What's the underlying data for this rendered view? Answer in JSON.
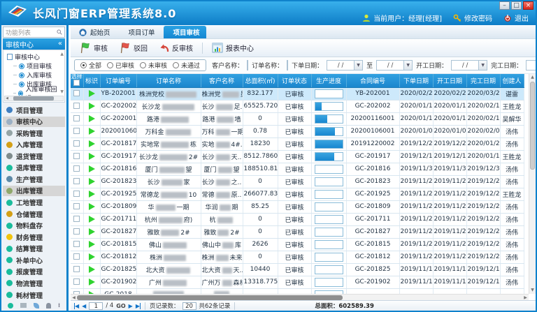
{
  "window": {
    "title": "长风门窗ERP管理系统8.0",
    "controls": {
      "minimize": "–",
      "maximize": "□",
      "close": "×"
    }
  },
  "topbar": {
    "current_user": "当前用户：经理[经理]",
    "change_password": "修改密码",
    "logout": "退出"
  },
  "icons": {
    "collapse": "«",
    "dropdown": "▼",
    "up": "▲",
    "down": "▼",
    "left": "◀",
    "right": "▶",
    "more": "⁞"
  },
  "sidebar": {
    "search_placeholder": "功能列表",
    "panel_title": "审核中心",
    "tree_root": "审核中心",
    "tree_items": [
      "项目审核",
      "入库审核",
      "出库审核",
      "入库审核回退"
    ],
    "menu_items": [
      {
        "label": "项目管理",
        "color": "#3f7fc1",
        "selected": false
      },
      {
        "label": "审核中心",
        "color": "#9bb0c4",
        "selected": true
      },
      {
        "label": "采购管理",
        "color": "#95a5a6",
        "selected": false
      },
      {
        "label": "入库管理",
        "color": "#d4a017",
        "selected": false
      },
      {
        "label": "退货管理",
        "color": "#7f8c8d",
        "selected": false
      },
      {
        "label": "退库管理",
        "color": "#1abc9c",
        "selected": false
      },
      {
        "label": "生产管理",
        "color": "#5d8aa8",
        "selected": false
      },
      {
        "label": "出库管理",
        "color": "#8fa86b",
        "selected": true
      },
      {
        "label": "工地管理",
        "color": "#1abc9c",
        "selected": false
      },
      {
        "label": "仓储管理",
        "color": "#d4a017",
        "selected": false
      },
      {
        "label": "物料盘存",
        "color": "#1abc9c",
        "selected": false
      },
      {
        "label": "财务管理",
        "color": "#f1c40f",
        "selected": false
      },
      {
        "label": "结算管理",
        "color": "#1abc9c",
        "selected": false
      },
      {
        "label": "补单中心",
        "color": "#1abc9c",
        "selected": false
      },
      {
        "label": "报废管理",
        "color": "#1abc9c",
        "selected": false
      },
      {
        "label": "物流管理",
        "color": "#1abc9c",
        "selected": false
      },
      {
        "label": "耗材管理",
        "color": "#1abc9c",
        "selected": false
      }
    ]
  },
  "tabs": [
    {
      "label": "起始页",
      "closable": false,
      "active": false,
      "home": true
    },
    {
      "label": "项目订单",
      "closable": true,
      "active": false
    },
    {
      "label": "项目审核",
      "closable": true,
      "active": true
    }
  ],
  "toolbar": {
    "audit": "审核",
    "reject": "驳回",
    "reverse_audit": "反审核",
    "report_center": "报表中心"
  },
  "filters": {
    "radios": [
      {
        "label": "全部",
        "checked": true
      },
      {
        "label": "已审核",
        "checked": false
      },
      {
        "label": "未审核",
        "checked": false
      },
      {
        "label": "未通过",
        "checked": false
      }
    ],
    "customer_label": "客户名称：",
    "order_label": "订单名称：",
    "order_date_label": "下单日期：",
    "to_label": "至",
    "start_date_label": "开工日期：",
    "finish_date_label": "完工日期：",
    "date_value": "/  /"
  },
  "table": {
    "headers": [
      "选择",
      "标识",
      "订单编号",
      "订单名称",
      "客户名称",
      "总面积(㎡)",
      "订单状态",
      "生产进度",
      "合同编号",
      "下单日期",
      "开工日期",
      "完工日期",
      "创建人"
    ],
    "rows": [
      {
        "selected": true,
        "order_no": "YB-202001",
        "name_pre": "株洲党校",
        "name_blur": 44,
        "name_suf": "",
        "cust_pre": "株洲党",
        "cust_blur": 24,
        "cust_suf": "员..",
        "area": "832.177",
        "status": "已审核",
        "progress": 0,
        "contract_no": "YB-202001",
        "order_date": "2020/02/28",
        "start_date": "2020/02/28",
        "finish_date": "2020/03/28",
        "creator": "谌雷"
      },
      {
        "selected": false,
        "order_no": "GC-202002",
        "name_pre": "长沙龙",
        "name_blur": 46,
        "name_suf": "",
        "cust_pre": "长沙",
        "cust_blur": 24,
        "cust_suf": "足..",
        "area": "65525.7200..",
        "status": "已审核",
        "progress": 25,
        "contract_no": "GC-202002",
        "order_date": "2020/01/19",
        "start_date": "2020/01/19",
        "finish_date": "2020/02/19",
        "creator": "王胜龙"
      },
      {
        "selected": false,
        "order_no": "GC-202001",
        "name_pre": "路港",
        "name_blur": 40,
        "name_suf": "",
        "cust_pre": "路港",
        "cust_blur": 24,
        "cust_suf": "墙",
        "area": "0",
        "status": "已审核",
        "progress": 45,
        "contract_no": "20200116001",
        "order_date": "2020/01/16",
        "start_date": "2020/01/16",
        "finish_date": "2020/02/16",
        "creator": "吴解华"
      },
      {
        "selected": false,
        "order_no": "20200106001",
        "name_pre": "万科金",
        "name_blur": 36,
        "name_suf": "",
        "cust_pre": "万科",
        "cust_blur": 20,
        "cust_suf": "一期",
        "area": "0.78",
        "status": "已审核",
        "progress": 72,
        "contract_no": "20200106001",
        "order_date": "2020/01/06",
        "start_date": "2020/01/06",
        "finish_date": "2020/02/06",
        "creator": "汤伟"
      },
      {
        "selected": false,
        "order_no": "GC-2018178",
        "name_pre": "实地常",
        "name_blur": 40,
        "name_suf": "栋",
        "cust_pre": "实地",
        "cust_blur": 20,
        "cust_suf": "4#..",
        "area": "18230",
        "status": "已审核",
        "progress": 100,
        "contract_no": "20191220002",
        "order_date": "2019/12/20",
        "start_date": "2019/12/20",
        "finish_date": "2020/01/20",
        "creator": "汤伟"
      },
      {
        "selected": false,
        "order_no": "GC-201917",
        "name_pre": "长沙龙",
        "name_blur": 40,
        "name_suf": "2#",
        "cust_pre": "长沙",
        "cust_blur": 20,
        "cust_suf": "天..",
        "area": "8512.78600..",
        "status": "已审核",
        "progress": 70,
        "contract_no": "GC-201917",
        "order_date": "2019/12/17",
        "start_date": "2019/12/17",
        "finish_date": "2020/01/17",
        "creator": "王胜龙"
      },
      {
        "selected": false,
        "order_no": "GC-201816",
        "name_pre": "厦门",
        "name_blur": 36,
        "name_suf": "望",
        "cust_pre": "厦门",
        "cust_blur": 20,
        "cust_suf": "望",
        "area": "188510.818",
        "status": "已审核",
        "progress": 0,
        "contract_no": "GC-201816",
        "order_date": "2019/11/30",
        "start_date": "2019/11/30",
        "finish_date": "2019/12/30",
        "creator": "汤伟"
      },
      {
        "selected": false,
        "order_no": "GC-201823",
        "name_pre": "长沙",
        "name_blur": 30,
        "name_suf": "家",
        "cust_pre": "长沙",
        "cust_blur": 20,
        "cust_suf": "之..",
        "area": "0",
        "status": "已审核",
        "progress": 0,
        "contract_no": "GC-201823",
        "order_date": "2019/11/27",
        "start_date": "2019/11/27",
        "finish_date": "2019/12/27",
        "creator": "汤伟"
      },
      {
        "selected": false,
        "order_no": "GC-201925",
        "name_pre": "常德龙",
        "name_blur": 38,
        "name_suf": "10",
        "cust_pre": "常德",
        "cust_blur": 20,
        "cust_suf": "原..",
        "area": "266077.835..",
        "status": "已审核",
        "progress": 0,
        "contract_no": "GC-201925",
        "order_date": "2019/11/21",
        "start_date": "2019/11/21",
        "finish_date": "2019/12/21",
        "creator": "王胜龙"
      },
      {
        "selected": false,
        "order_no": "GC-201809",
        "name_pre": "华",
        "name_blur": 28,
        "name_suf": "一期",
        "cust_pre": "华润",
        "cust_blur": 16,
        "cust_suf": "期",
        "area": "85.25",
        "status": "已审核",
        "progress": 0,
        "contract_no": "GC-201809",
        "order_date": "2019/11/20",
        "start_date": "2019/11/20",
        "finish_date": "2019/12/20",
        "creator": "汤伟"
      },
      {
        "selected": false,
        "order_no": "GC-201711",
        "name_pre": "杭州",
        "name_blur": 34,
        "name_suf": "府)",
        "cust_pre": "杭",
        "cust_blur": 22,
        "cust_suf": "",
        "area": "0",
        "status": "已审核",
        "progress": 0,
        "contract_no": "GC-201711",
        "order_date": "2019/11/20",
        "start_date": "2019/11/20",
        "finish_date": "2019/12/20",
        "creator": "汤伟"
      },
      {
        "selected": false,
        "order_no": "GC-201827",
        "name_pre": "雅致",
        "name_blur": 26,
        "name_suf": "2#",
        "cust_pre": "雅致",
        "cust_blur": 16,
        "cust_suf": "2#",
        "area": "0",
        "status": "已审核",
        "progress": 0,
        "contract_no": "GC-201827",
        "order_date": "2019/11/20",
        "start_date": "2019/11/20",
        "finish_date": "2019/12/20",
        "creator": "汤伟"
      },
      {
        "selected": false,
        "order_no": "GC-201815",
        "name_pre": "佛山",
        "name_blur": 34,
        "name_suf": "",
        "cust_pre": "佛山中",
        "cust_blur": 16,
        "cust_suf": "库",
        "area": "2626",
        "status": "已审核",
        "progress": 0,
        "contract_no": "GC-201815",
        "order_date": "2019/11/20",
        "start_date": "2019/11/20",
        "finish_date": "2019/12/20",
        "creator": "汤伟"
      },
      {
        "selected": false,
        "order_no": "GC-201812",
        "name_pre": "株洲",
        "name_blur": 32,
        "name_suf": "",
        "cust_pre": "株洲",
        "cust_blur": 18,
        "cust_suf": "未来",
        "area": "0",
        "status": "已审核",
        "progress": 0,
        "contract_no": "GC-201812",
        "order_date": "2019/11/20",
        "start_date": "2019/11/20",
        "finish_date": "2019/12/20",
        "creator": "汤伟"
      },
      {
        "selected": false,
        "order_no": "GC-201825",
        "name_pre": "北大资",
        "name_blur": 34,
        "name_suf": "",
        "cust_pre": "北大资",
        "cust_blur": 14,
        "cust_suf": "天..",
        "area": "10440",
        "status": "已审核",
        "progress": 0,
        "contract_no": "GC-201825",
        "order_date": "2019/11/19",
        "start_date": "2019/11/19",
        "finish_date": "2019/12/19",
        "creator": "汤伟"
      },
      {
        "selected": false,
        "order_no": "GC-201902",
        "name_pre": "广州",
        "name_blur": 34,
        "name_suf": "",
        "cust_pre": "广州万",
        "cust_blur": 14,
        "cust_suf": "森林",
        "area": "13318.775",
        "status": "已审核",
        "progress": 0,
        "contract_no": "GC-201902",
        "order_date": "2019/11/19",
        "start_date": "2019/11/19",
        "finish_date": "2019/12/19",
        "creator": "汤伟"
      },
      {
        "selected": false,
        "order_no": "GC-2018",
        "name_pre": "",
        "name_blur": 44,
        "name_suf": "",
        "cust_pre": "",
        "cust_blur": 22,
        "cust_suf": "",
        "area": "",
        "status": "",
        "progress": 0,
        "contract_no": "",
        "order_date": "",
        "start_date": "",
        "finish_date": "",
        "creator": ""
      }
    ]
  },
  "pagination": {
    "page": "1",
    "total_pages": "/ 4",
    "go": "GO",
    "page_size_label": "页记录数：",
    "page_size": "20",
    "total_records": "共62条记录",
    "total_area": "总面积：602589.39"
  }
}
